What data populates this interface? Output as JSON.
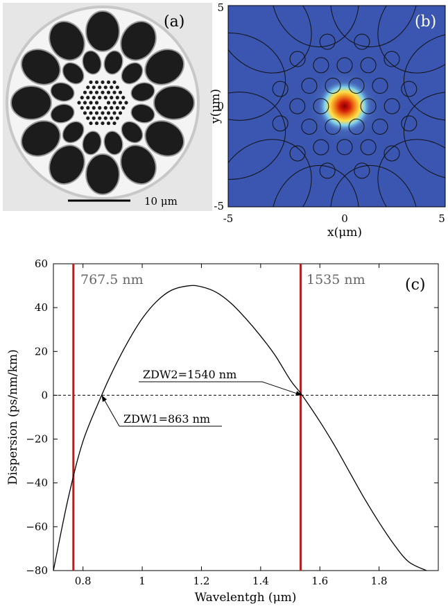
{
  "panel_a": {
    "label": "(a)",
    "scale_bar_label": "10 μm",
    "core_color": "#1c1c1c",
    "cladding_color": "#e6e6e6"
  },
  "panel_b": {
    "label": "(b)",
    "xlabel": "x(μm)",
    "ylabel": "y(μm)",
    "xlim": [
      -5,
      5
    ],
    "ylim": [
      -5,
      5
    ],
    "x_ticks": [
      "-5",
      "0",
      "5"
    ],
    "y_ticks": [
      "5",
      "0",
      "-5"
    ],
    "background_color": "#3a56b0",
    "mode_colors": [
      "#7fd3f0",
      "#ffe14a",
      "#f0471c",
      "#8a0000"
    ]
  },
  "chart_data": {
    "type": "line",
    "label": "(c)",
    "xlabel": "Wavelentgh (μm)",
    "ylabel": "Dispersion (ps/nm/km)",
    "xlim": [
      0.7,
      2.0
    ],
    "ylim": [
      -80,
      60
    ],
    "x_ticks": [
      0.8,
      1.0,
      1.2,
      1.4,
      1.6,
      1.8
    ],
    "x_tick_labels": [
      "0.8",
      "1",
      "1.2",
      "1.4",
      "1.6",
      "1.8"
    ],
    "y_ticks": [
      -80,
      -60,
      -40,
      -20,
      0,
      20,
      40,
      60
    ],
    "y_tick_labels": [
      "−80",
      "−60",
      "−40",
      "−20",
      "0",
      "20",
      "40",
      "60"
    ],
    "series": [
      {
        "x": [
          0.7,
          0.75,
          0.8,
          0.863,
          0.9,
          0.95,
          1.0,
          1.05,
          1.1,
          1.16,
          1.2,
          1.25,
          1.3,
          1.35,
          1.4,
          1.45,
          1.5,
          1.54,
          1.6,
          1.65,
          1.7,
          1.75,
          1.8,
          1.85,
          1.9,
          1.96
        ],
        "y": [
          -80,
          -47,
          -21,
          0,
          11,
          24,
          35,
          43,
          48,
          50,
          49.5,
          47,
          42,
          35,
          27,
          18,
          7,
          0,
          -12,
          -23,
          -35,
          -47,
          -58,
          -68,
          -76,
          -80
        ]
      }
    ],
    "vertical_markers": [
      {
        "x": 0.7675,
        "label": "767.5 nm"
      },
      {
        "x": 1.535,
        "label": "1535 nm"
      }
    ],
    "annotations": [
      {
        "text": "ZDW1=863 nm",
        "x": 0.863,
        "y": 0
      },
      {
        "text": "ZDW2=1540 nm",
        "x": 1.54,
        "y": 0
      }
    ],
    "zero_line": true,
    "line_color": "#000000",
    "marker_color": "#b22222"
  }
}
